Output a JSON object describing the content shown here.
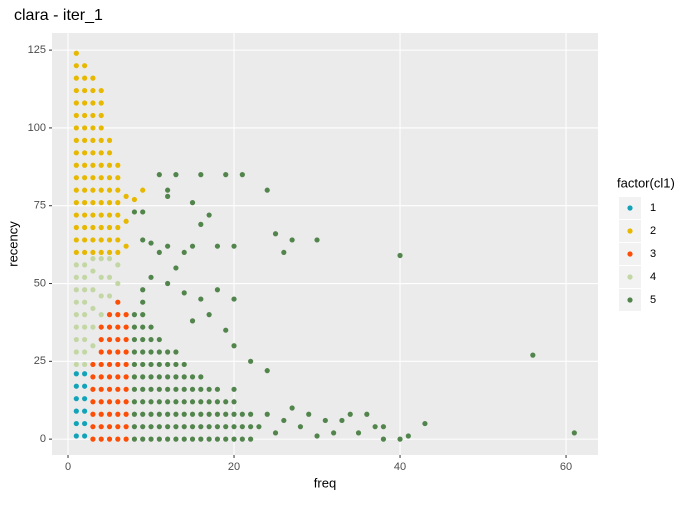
{
  "chart_data": {
    "type": "scatter",
    "title": "clara - iter_1",
    "x_label": "freq",
    "y_label": "recency",
    "legend_title": "factor(cl1)",
    "xlim": [
      -1.93,
      63.85
    ],
    "ylim": [
      -5.1,
      130.5
    ],
    "xticks": [
      0,
      20,
      40,
      60
    ],
    "yticks": [
      0,
      25,
      50,
      75,
      100,
      125
    ],
    "grid": true,
    "legend": "right",
    "series": [
      {
        "name": "1",
        "color": "#13A3B9",
        "x": [
          1,
          1,
          1,
          1,
          1,
          1,
          2,
          2,
          2,
          2,
          2,
          2
        ],
        "values": [
          1,
          5,
          9,
          13,
          17,
          21,
          1,
          5,
          9,
          13,
          17,
          21
        ]
      },
      {
        "name": "2",
        "color": "#E7B800",
        "x": [
          1,
          1,
          1,
          1,
          1,
          1,
          1,
          1,
          1,
          1,
          1,
          1,
          1,
          1,
          1,
          1,
          1,
          2,
          2,
          2,
          2,
          2,
          2,
          2,
          2,
          2,
          2,
          2,
          2,
          2,
          2,
          2,
          2,
          3,
          3,
          3,
          3,
          3,
          3,
          3,
          3,
          3,
          3,
          3,
          3,
          3,
          3,
          3,
          4,
          4,
          4,
          4,
          4,
          4,
          4,
          4,
          4,
          4,
          4,
          4,
          4,
          4,
          5,
          5,
          5,
          5,
          5,
          5,
          5,
          5,
          5,
          5,
          6,
          6,
          6,
          6,
          6,
          6,
          6,
          6,
          7,
          7,
          7,
          8,
          9
        ],
        "values": [
          60,
          64,
          68,
          72,
          76,
          80,
          84,
          88,
          92,
          96,
          100,
          104,
          108,
          112,
          116,
          120,
          124,
          60,
          64,
          68,
          72,
          76,
          80,
          84,
          88,
          92,
          96,
          100,
          104,
          108,
          112,
          116,
          120,
          60,
          64,
          68,
          72,
          76,
          80,
          84,
          88,
          92,
          96,
          100,
          104,
          108,
          112,
          116,
          60,
          64,
          68,
          72,
          76,
          80,
          84,
          88,
          92,
          96,
          100,
          104,
          108,
          112,
          60,
          64,
          68,
          72,
          76,
          80,
          84,
          88,
          92,
          96,
          60,
          64,
          68,
          72,
          76,
          80,
          84,
          88,
          62,
          70,
          78,
          77,
          80
        ]
      },
      {
        "name": "3",
        "color": "#FC4E07",
        "x": [
          3,
          3,
          3,
          3,
          3,
          3,
          3,
          4,
          4,
          4,
          4,
          4,
          4,
          4,
          4,
          4,
          4,
          5,
          5,
          5,
          5,
          5,
          5,
          5,
          5,
          5,
          5,
          5,
          6,
          6,
          6,
          6,
          6,
          6,
          6,
          6,
          6,
          6,
          6,
          6,
          7,
          7,
          7,
          7,
          7,
          7,
          7,
          7,
          7,
          7,
          7
        ],
        "values": [
          0,
          4,
          8,
          12,
          16,
          20,
          24,
          0,
          4,
          8,
          12,
          16,
          20,
          24,
          28,
          32,
          36,
          0,
          4,
          8,
          12,
          16,
          20,
          24,
          28,
          32,
          36,
          40,
          0,
          4,
          8,
          12,
          16,
          20,
          24,
          28,
          32,
          36,
          40,
          44,
          0,
          4,
          8,
          12,
          16,
          20,
          24,
          28,
          32,
          36,
          40
        ]
      },
      {
        "name": "4",
        "color": "#C3D7A4",
        "x": [
          1,
          1,
          1,
          1,
          1,
          1,
          1,
          1,
          1,
          2,
          2,
          2,
          2,
          2,
          2,
          2,
          2,
          2,
          3,
          3,
          3,
          3,
          3,
          3,
          4,
          4,
          4,
          4,
          5,
          5,
          5,
          6,
          6
        ],
        "values": [
          24,
          28,
          32,
          36,
          40,
          44,
          48,
          52,
          56,
          24,
          28,
          32,
          36,
          40,
          44,
          48,
          52,
          56,
          30,
          36,
          42,
          48,
          54,
          58,
          40,
          46,
          52,
          58,
          46,
          52,
          58,
          50,
          56
        ]
      },
      {
        "name": "5",
        "color": "#52854C",
        "x": [
          8,
          8,
          8,
          8,
          8,
          8,
          8,
          8,
          8,
          8,
          8,
          9,
          9,
          9,
          9,
          9,
          9,
          9,
          9,
          9,
          9,
          9,
          9,
          9,
          10,
          10,
          10,
          10,
          10,
          10,
          10,
          10,
          10,
          10,
          11,
          11,
          11,
          11,
          11,
          11,
          11,
          11,
          11,
          12,
          12,
          12,
          12,
          12,
          12,
          12,
          12,
          13,
          13,
          13,
          13,
          13,
          13,
          13,
          13,
          14,
          14,
          14,
          14,
          14,
          14,
          14,
          15,
          15,
          15,
          15,
          15,
          15,
          16,
          16,
          16,
          16,
          16,
          16,
          17,
          17,
          17,
          17,
          17,
          18,
          18,
          18,
          18,
          18,
          19,
          19,
          19,
          19,
          20,
          20,
          20,
          20,
          20,
          21,
          21,
          21,
          22,
          22,
          22,
          23,
          24,
          25,
          26,
          27,
          28,
          29,
          30,
          31,
          32,
          33,
          34,
          35,
          36,
          37,
          38,
          38,
          40,
          41,
          43,
          56,
          61,
          40,
          30,
          27,
          26,
          25,
          24,
          21,
          19,
          17,
          16,
          15,
          14,
          13,
          12,
          11,
          12,
          10,
          9,
          8,
          9,
          13,
          15,
          18,
          16,
          20,
          12,
          11,
          14,
          16,
          18,
          17,
          12,
          10,
          20,
          15,
          19,
          20,
          22,
          24
        ],
        "values": [
          0,
          4,
          8,
          12,
          16,
          20,
          24,
          28,
          32,
          36,
          40,
          0,
          4,
          8,
          12,
          16,
          20,
          24,
          28,
          32,
          36,
          40,
          44,
          48,
          0,
          4,
          8,
          12,
          16,
          20,
          24,
          28,
          32,
          36,
          0,
          4,
          8,
          12,
          16,
          20,
          24,
          28,
          32,
          0,
          4,
          8,
          12,
          16,
          20,
          24,
          28,
          0,
          4,
          8,
          12,
          16,
          20,
          24,
          28,
          0,
          4,
          8,
          12,
          16,
          20,
          24,
          0,
          4,
          8,
          12,
          16,
          20,
          0,
          4,
          8,
          12,
          16,
          20,
          0,
          4,
          8,
          12,
          16,
          0,
          4,
          8,
          12,
          16,
          0,
          4,
          8,
          12,
          0,
          4,
          8,
          12,
          16,
          0,
          4,
          8,
          0,
          4,
          8,
          4,
          8,
          2,
          6,
          10,
          4,
          8,
          1,
          6,
          2,
          6,
          8,
          2,
          8,
          4,
          0,
          4,
          0,
          1,
          5,
          27,
          2,
          59,
          64,
          64,
          60,
          66,
          80,
          85,
          85,
          72,
          69,
          76,
          60,
          85,
          78,
          85,
          62,
          63,
          73,
          73,
          64,
          55,
          62,
          62,
          85,
          62,
          80,
          60,
          47,
          45,
          48,
          40,
          50,
          52,
          45,
          38,
          35,
          30,
          25,
          22
        ]
      }
    ]
  }
}
